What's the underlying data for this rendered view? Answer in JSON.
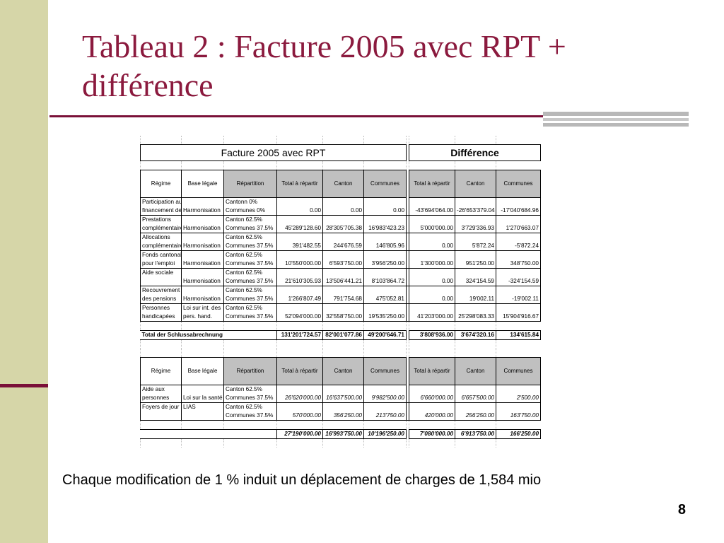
{
  "slide": {
    "title": "Tableau 2 : Facture 2005 avec RPT + différence",
    "caption": "Chaque modification de 1 % induit un déplacement de charges de 1,584 mio",
    "page_number": "8",
    "colors": {
      "title": "#8b1a3e",
      "band": "#d6d6a8",
      "accent": "#7a1038",
      "header_fill": "#c0c0c0"
    }
  },
  "table": {
    "group_headers": {
      "facture": "Facture 2005 avec RPT",
      "difference": "Différence"
    },
    "column_headers": [
      "Régime",
      "Base légale",
      "Répartition",
      "Total à répartir",
      "Canton",
      "Communes",
      "Total à répartir",
      "Canton",
      "Communes"
    ],
    "rows1": [
      {
        "regime": [
          "Participation au",
          "financement de"
        ],
        "base": [
          "",
          "Harmonisation"
        ],
        "repartition": [
          "Cantonn 0%",
          "Communes 0%"
        ],
        "values": [
          "0.00",
          "0.00",
          "0.00",
          "-43'694'064.00",
          "-26'653'379.04",
          "-17'040'684.96"
        ]
      },
      {
        "regime": [
          "Prestations",
          "complémentaire"
        ],
        "base": [
          "",
          "Harmonisation"
        ],
        "repartition": [
          "Canton 62.5%",
          "Communes 37.5%"
        ],
        "values": [
          "45'289'128.60",
          "28'305'705.38",
          "16'983'423.23",
          "5'000'000.00",
          "3'729'336.93",
          "1'270'663.07"
        ]
      },
      {
        "regime": [
          "Allocations",
          "complémentaire"
        ],
        "base": [
          "",
          "Harmonisation"
        ],
        "repartition": [
          "Canton 62.5%",
          "Communes 37.5%"
        ],
        "values": [
          "391'482.55",
          "244'676.59",
          "146'805.96",
          "0.00",
          "5'872.24",
          "-5'872.24"
        ]
      },
      {
        "regime": [
          "Fonds cantonal",
          "pour l'emploi"
        ],
        "base": [
          "",
          "Harmonisation"
        ],
        "repartition": [
          "Canton 62.5%",
          "Communes 37.5%"
        ],
        "values": [
          "10'550'000.00",
          "6'593'750.00",
          "3'956'250.00",
          "1'300'000.00",
          "951'250.00",
          "348'750.00"
        ]
      },
      {
        "regime": [
          "Aide sociale",
          ""
        ],
        "base": [
          "",
          "Harmonisation"
        ],
        "repartition": [
          "Canton 62.5%",
          "Communes 37.5%"
        ],
        "values": [
          "21'610'305.93",
          "13'506'441.21",
          "8'103'864.72",
          "0.00",
          "324'154.59",
          "-324'154.59"
        ]
      },
      {
        "regime": [
          "Recouvrement",
          "des pensions"
        ],
        "base": [
          "",
          "Harmonisation"
        ],
        "repartition": [
          "Canton 62.5%",
          "Communes 37.5%"
        ],
        "values": [
          "1'266'807.49",
          "791'754.68",
          "475'052.81",
          "0.00",
          "19'002.11",
          "-19'002.11"
        ]
      },
      {
        "regime": [
          "Personnes",
          "handicapées"
        ],
        "base": [
          "Loi sur int. des",
          "pers. hand."
        ],
        "repartition": [
          "Canton 62.5%",
          "Communes 37.5%"
        ],
        "values": [
          "52'094'000.00",
          "32'558'750.00",
          "19'535'250.00",
          "41'203'000.00",
          "25'298'083.33",
          "15'904'916.67"
        ]
      }
    ],
    "total1": {
      "label": "Total der Schlussabrechnung",
      "values": [
        "131'201'724.57",
        "82'001'077.86",
        "49'200'646.71",
        "3'808'936.00",
        "3'674'320.16",
        "134'615.84"
      ]
    },
    "rows2": [
      {
        "regime": [
          "Aide aux",
          "personnes"
        ],
        "base": [
          "",
          "Loi sur la santé"
        ],
        "repartition": [
          "Canton 62.5%",
          "Communes 37.5%"
        ],
        "values": [
          "26'620'000.00",
          "16'637'500.00",
          "9'982'500.00",
          "6'660'000.00",
          "6'657'500.00",
          "2'500.00"
        ]
      },
      {
        "regime": [
          "Foyers de jour",
          ""
        ],
        "base": [
          "LIAS",
          ""
        ],
        "repartition": [
          "Canton 62.5%",
          "Communes 37.5%"
        ],
        "values": [
          "570'000.00",
          "356'250.00",
          "213'750.00",
          "420'000.00",
          "256'250.00",
          "163'750.00"
        ]
      }
    ],
    "total2": {
      "values": [
        "27'190'000.00",
        "16'993'750.00",
        "10'196'250.00",
        "7'080'000.00",
        "6'913'750.00",
        "166'250.00"
      ]
    }
  }
}
